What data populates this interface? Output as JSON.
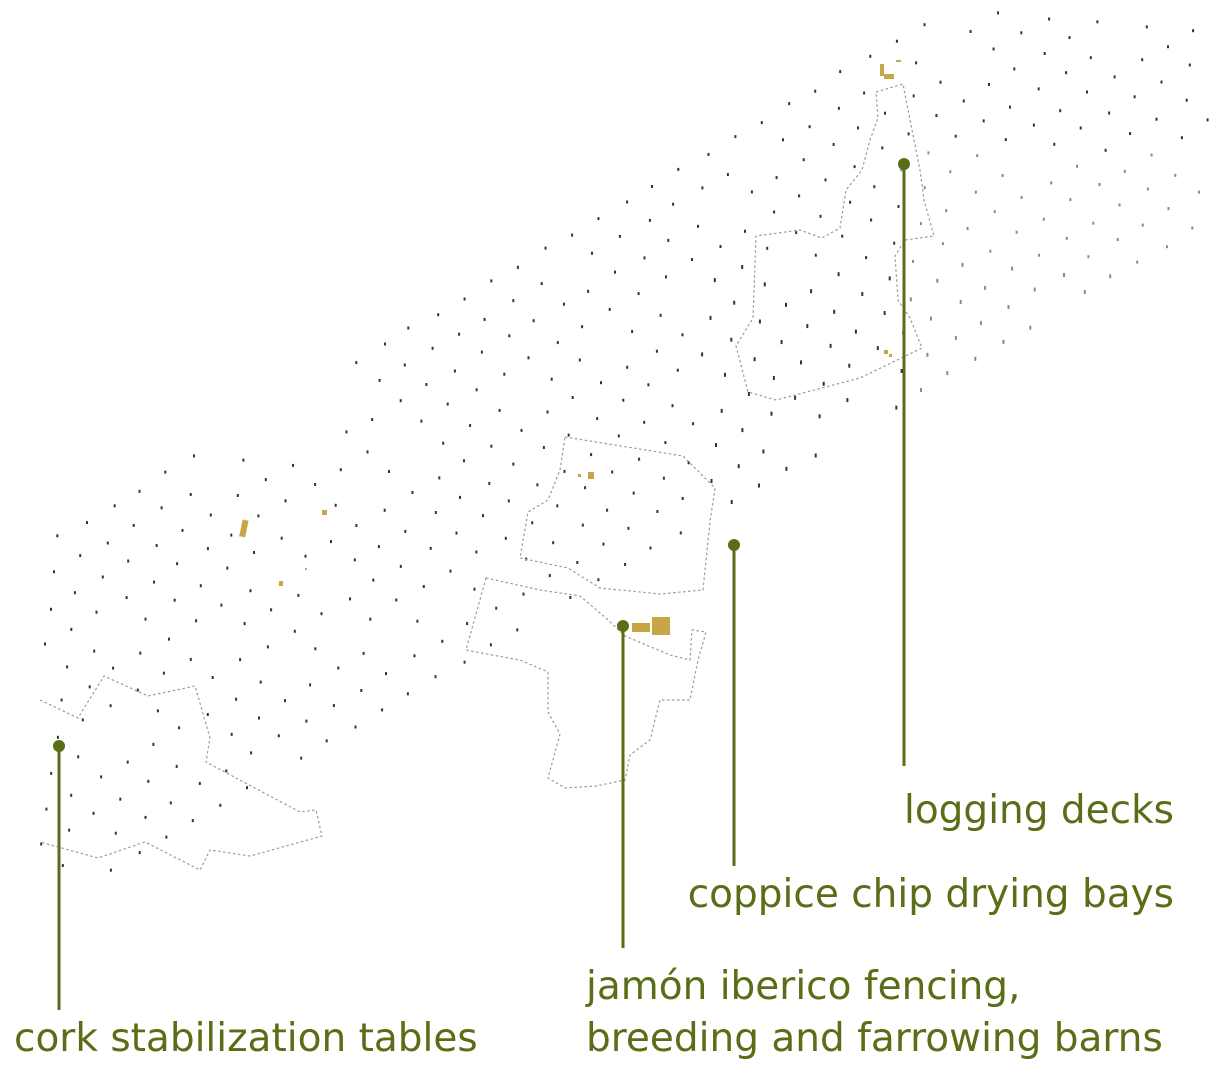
{
  "colors": {
    "callout": "#5a6e17",
    "structure": "#c8a646",
    "tree_dot": "#333333",
    "boundary": "#9a9a9a"
  },
  "callouts": [
    {
      "id": "logging-decks",
      "text": "logging decks"
    },
    {
      "id": "coppice-chip-drying-bays",
      "text": "coppice chip drying bays"
    },
    {
      "id": "jamon-iberico",
      "lines": [
        "jamón iberico fencing,",
        "breeding and farrowing barns"
      ]
    },
    {
      "id": "cork-stabilization-tables",
      "text": "cork stabilization tables"
    }
  ]
}
